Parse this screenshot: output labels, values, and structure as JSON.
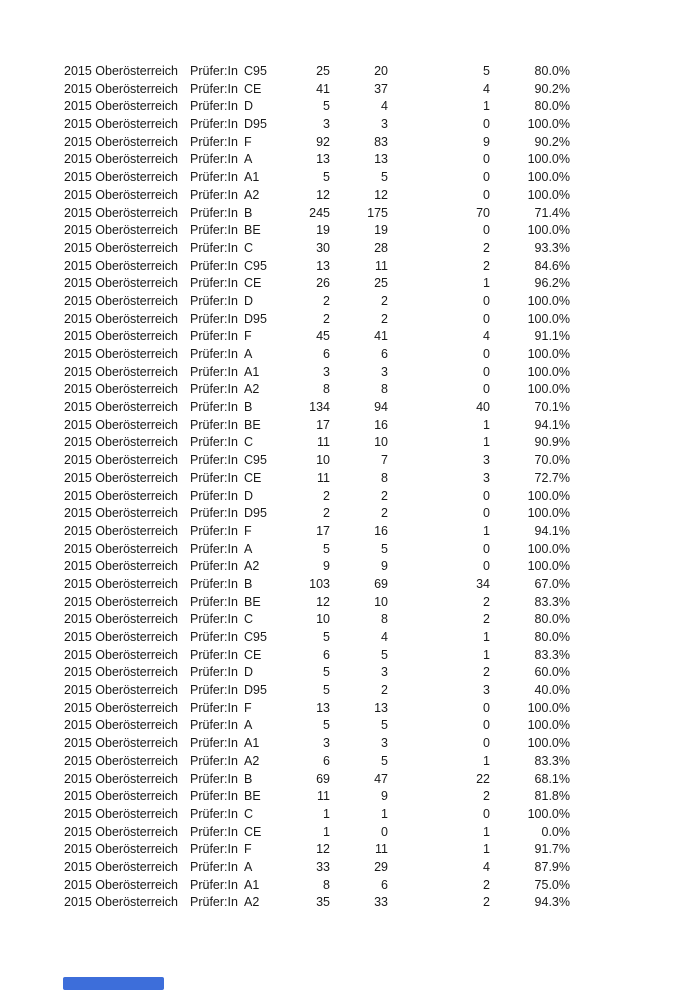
{
  "page": {
    "background_color": "#ffffff",
    "text_color": "#1a1a1a",
    "accent_color": "#3d6eda"
  },
  "table": {
    "columns": [
      "year_region",
      "examiner",
      "license_class",
      "total",
      "passed",
      "failed",
      "pass_rate"
    ],
    "rows": [
      [
        "2015 Oberösterreich",
        "Prüfer:In",
        "C95",
        "25",
        "20",
        "5",
        "80.0%"
      ],
      [
        "2015 Oberösterreich",
        "Prüfer:In",
        "CE",
        "41",
        "37",
        "4",
        "90.2%"
      ],
      [
        "2015 Oberösterreich",
        "Prüfer:In",
        "D",
        "5",
        "4",
        "1",
        "80.0%"
      ],
      [
        "2015 Oberösterreich",
        "Prüfer:In",
        "D95",
        "3",
        "3",
        "0",
        "100.0%"
      ],
      [
        "2015 Oberösterreich",
        "Prüfer:In",
        "F",
        "92",
        "83",
        "9",
        "90.2%"
      ],
      [
        "2015 Oberösterreich",
        "Prüfer:In",
        "A",
        "13",
        "13",
        "0",
        "100.0%"
      ],
      [
        "2015 Oberösterreich",
        "Prüfer:In",
        "A1",
        "5",
        "5",
        "0",
        "100.0%"
      ],
      [
        "2015 Oberösterreich",
        "Prüfer:In",
        "A2",
        "12",
        "12",
        "0",
        "100.0%"
      ],
      [
        "2015 Oberösterreich",
        "Prüfer:In",
        "B",
        "245",
        "175",
        "70",
        "71.4%"
      ],
      [
        "2015 Oberösterreich",
        "Prüfer:In",
        "BE",
        "19",
        "19",
        "0",
        "100.0%"
      ],
      [
        "2015 Oberösterreich",
        "Prüfer:In",
        "C",
        "30",
        "28",
        "2",
        "93.3%"
      ],
      [
        "2015 Oberösterreich",
        "Prüfer:In",
        "C95",
        "13",
        "11",
        "2",
        "84.6%"
      ],
      [
        "2015 Oberösterreich",
        "Prüfer:In",
        "CE",
        "26",
        "25",
        "1",
        "96.2%"
      ],
      [
        "2015 Oberösterreich",
        "Prüfer:In",
        "D",
        "2",
        "2",
        "0",
        "100.0%"
      ],
      [
        "2015 Oberösterreich",
        "Prüfer:In",
        "D95",
        "2",
        "2",
        "0",
        "100.0%"
      ],
      [
        "2015 Oberösterreich",
        "Prüfer:In",
        "F",
        "45",
        "41",
        "4",
        "91.1%"
      ],
      [
        "2015 Oberösterreich",
        "Prüfer:In",
        "A",
        "6",
        "6",
        "0",
        "100.0%"
      ],
      [
        "2015 Oberösterreich",
        "Prüfer:In",
        "A1",
        "3",
        "3",
        "0",
        "100.0%"
      ],
      [
        "2015 Oberösterreich",
        "Prüfer:In",
        "A2",
        "8",
        "8",
        "0",
        "100.0%"
      ],
      [
        "2015 Oberösterreich",
        "Prüfer:In",
        "B",
        "134",
        "94",
        "40",
        "70.1%"
      ],
      [
        "2015 Oberösterreich",
        "Prüfer:In",
        "BE",
        "17",
        "16",
        "1",
        "94.1%"
      ],
      [
        "2015 Oberösterreich",
        "Prüfer:In",
        "C",
        "11",
        "10",
        "1",
        "90.9%"
      ],
      [
        "2015 Oberösterreich",
        "Prüfer:In",
        "C95",
        "10",
        "7",
        "3",
        "70.0%"
      ],
      [
        "2015 Oberösterreich",
        "Prüfer:In",
        "CE",
        "11",
        "8",
        "3",
        "72.7%"
      ],
      [
        "2015 Oberösterreich",
        "Prüfer:In",
        "D",
        "2",
        "2",
        "0",
        "100.0%"
      ],
      [
        "2015 Oberösterreich",
        "Prüfer:In",
        "D95",
        "2",
        "2",
        "0",
        "100.0%"
      ],
      [
        "2015 Oberösterreich",
        "Prüfer:In",
        "F",
        "17",
        "16",
        "1",
        "94.1%"
      ],
      [
        "2015 Oberösterreich",
        "Prüfer:In",
        "A",
        "5",
        "5",
        "0",
        "100.0%"
      ],
      [
        "2015 Oberösterreich",
        "Prüfer:In",
        "A2",
        "9",
        "9",
        "0",
        "100.0%"
      ],
      [
        "2015 Oberösterreich",
        "Prüfer:In",
        "B",
        "103",
        "69",
        "34",
        "67.0%"
      ],
      [
        "2015 Oberösterreich",
        "Prüfer:In",
        "BE",
        "12",
        "10",
        "2",
        "83.3%"
      ],
      [
        "2015 Oberösterreich",
        "Prüfer:In",
        "C",
        "10",
        "8",
        "2",
        "80.0%"
      ],
      [
        "2015 Oberösterreich",
        "Prüfer:In",
        "C95",
        "5",
        "4",
        "1",
        "80.0%"
      ],
      [
        "2015 Oberösterreich",
        "Prüfer:In",
        "CE",
        "6",
        "5",
        "1",
        "83.3%"
      ],
      [
        "2015 Oberösterreich",
        "Prüfer:In",
        "D",
        "5",
        "3",
        "2",
        "60.0%"
      ],
      [
        "2015 Oberösterreich",
        "Prüfer:In",
        "D95",
        "5",
        "2",
        "3",
        "40.0%"
      ],
      [
        "2015 Oberösterreich",
        "Prüfer:In",
        "F",
        "13",
        "13",
        "0",
        "100.0%"
      ],
      [
        "2015 Oberösterreich",
        "Prüfer:In",
        "A",
        "5",
        "5",
        "0",
        "100.0%"
      ],
      [
        "2015 Oberösterreich",
        "Prüfer:In",
        "A1",
        "3",
        "3",
        "0",
        "100.0%"
      ],
      [
        "2015 Oberösterreich",
        "Prüfer:In",
        "A2",
        "6",
        "5",
        "1",
        "83.3%"
      ],
      [
        "2015 Oberösterreich",
        "Prüfer:In",
        "B",
        "69",
        "47",
        "22",
        "68.1%"
      ],
      [
        "2015 Oberösterreich",
        "Prüfer:In",
        "BE",
        "11",
        "9",
        "2",
        "81.8%"
      ],
      [
        "2015 Oberösterreich",
        "Prüfer:In",
        "C",
        "1",
        "1",
        "0",
        "100.0%"
      ],
      [
        "2015 Oberösterreich",
        "Prüfer:In",
        "CE",
        "1",
        "0",
        "1",
        "0.0%"
      ],
      [
        "2015 Oberösterreich",
        "Prüfer:In",
        "F",
        "12",
        "11",
        "1",
        "91.7%"
      ],
      [
        "2015 Oberösterreich",
        "Prüfer:In",
        "A",
        "33",
        "29",
        "4",
        "87.9%"
      ],
      [
        "2015 Oberösterreich",
        "Prüfer:In",
        "A1",
        "8",
        "6",
        "2",
        "75.0%"
      ],
      [
        "2015 Oberösterreich",
        "Prüfer:In",
        "A2",
        "35",
        "33",
        "2",
        "94.3%"
      ]
    ]
  }
}
